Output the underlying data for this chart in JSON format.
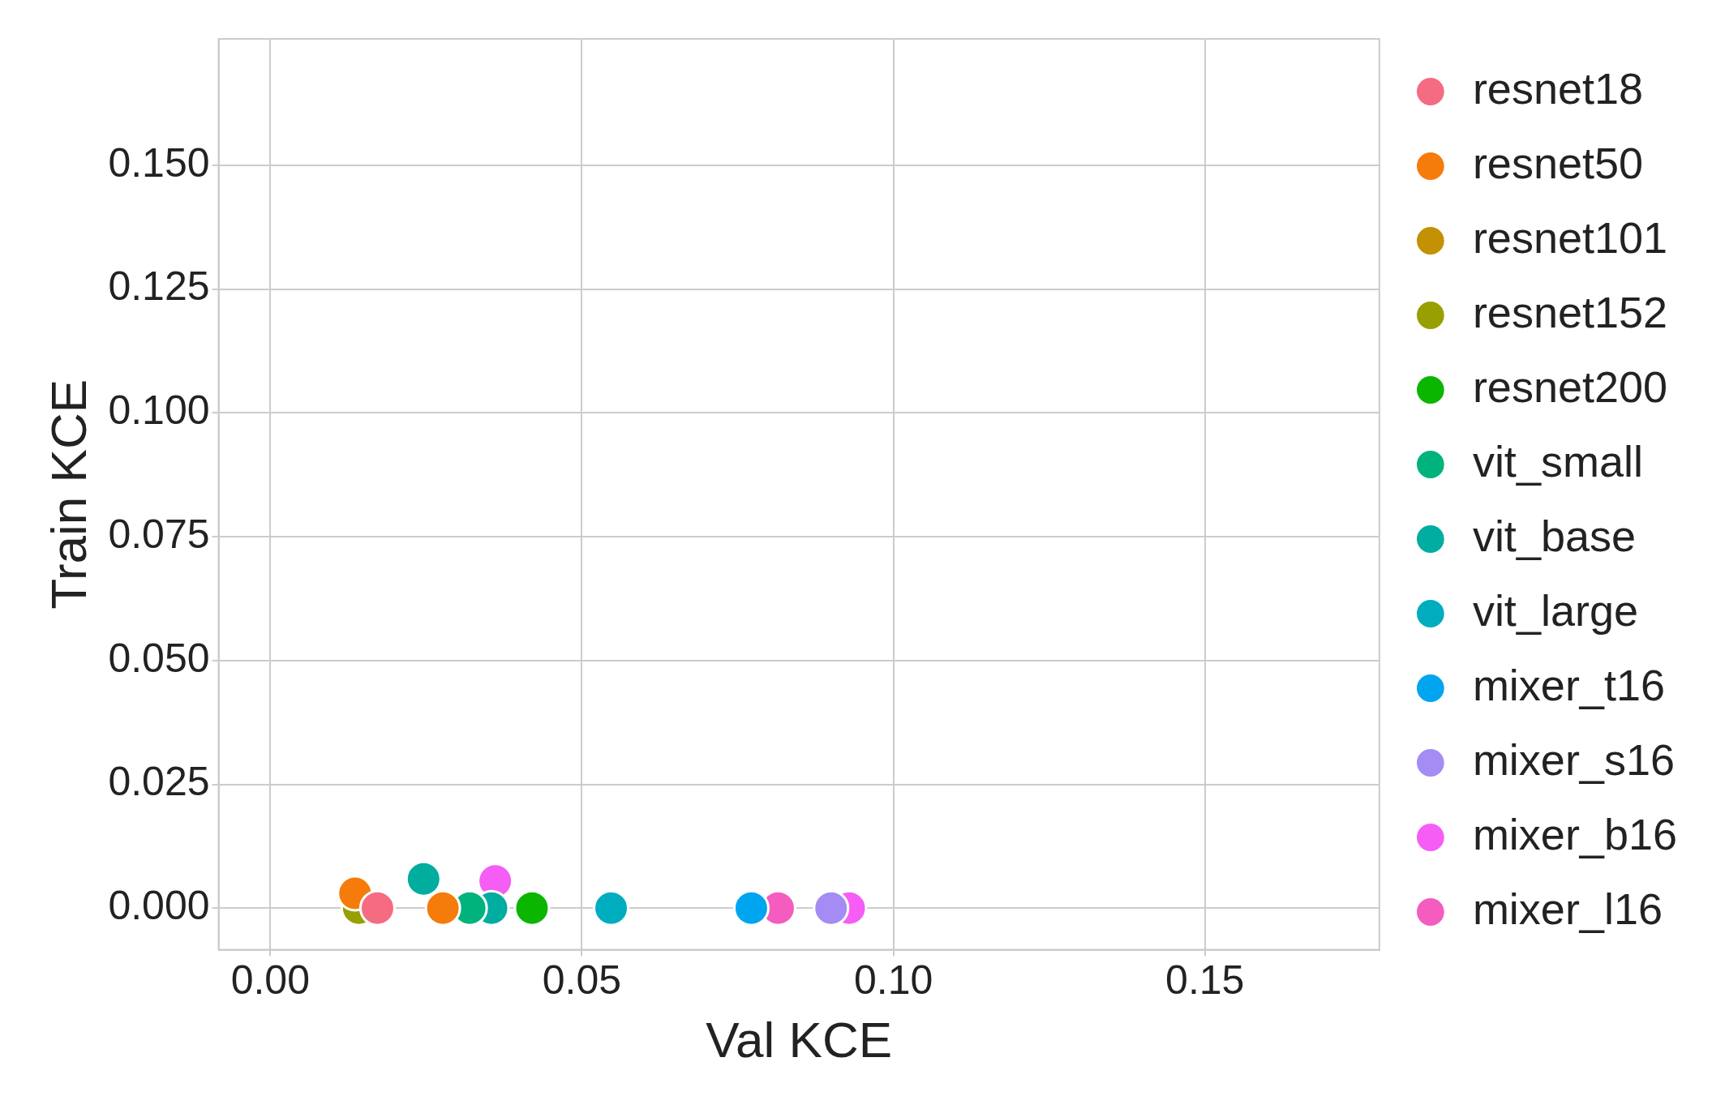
{
  "chart_data": {
    "type": "scatter",
    "xlabel": "Val KCE",
    "ylabel": "Train KCE",
    "xlim": [
      -0.0083,
      0.178
    ],
    "ylim": [
      -0.0084,
      0.1755
    ],
    "xticks": [
      {
        "value": 0,
        "label": "0.00"
      },
      {
        "value": 0.05,
        "label": "0.05"
      },
      {
        "value": 0.1,
        "label": "0.10"
      },
      {
        "value": 0.15,
        "label": "0.15"
      }
    ],
    "yticks": [
      {
        "value": 0,
        "label": "0.000"
      },
      {
        "value": 0.025,
        "label": "0.025"
      },
      {
        "value": 0.05,
        "label": "0.050"
      },
      {
        "value": 0.075,
        "label": "0.075"
      },
      {
        "value": 0.1,
        "label": "0.100"
      },
      {
        "value": 0.125,
        "label": "0.125"
      },
      {
        "value": 0.15,
        "label": "0.150"
      }
    ],
    "grid": true,
    "legend": "right",
    "marker": "circle",
    "series": [
      {
        "name": "resnet18",
        "color": "#f56b82",
        "x": [
          0.0172
        ],
        "values": [
          0
        ]
      },
      {
        "name": "resnet50",
        "color": "#f57c0b",
        "x": [
          0.0136,
          0.0277
        ],
        "values": [
          0.003,
          0
        ]
      },
      {
        "name": "resnet101",
        "color": "#c39104"
      },
      {
        "name": "resnet152",
        "color": "#97a000",
        "x": [
          0.0142
        ],
        "values": [
          0
        ]
      },
      {
        "name": "resnet200",
        "color": "#0ab600",
        "x": [
          0.042
        ],
        "values": [
          0
        ]
      },
      {
        "name": "vit_small",
        "color": "#00b27c",
        "x": [
          0.032
        ],
        "values": [
          0
        ]
      },
      {
        "name": "vit_base",
        "color": "#00ad9f",
        "x": [
          0.0246,
          0.0355
        ],
        "values": [
          0.0059,
          0
        ]
      },
      {
        "name": "vit_large",
        "color": "#00adbf",
        "x": [
          0.0547
        ],
        "values": [
          0
        ]
      },
      {
        "name": "mixer_t16",
        "color": "#00a5f0",
        "x": [
          0.0772
        ],
        "values": [
          0
        ]
      },
      {
        "name": "mixer_s16",
        "color": "#a48cf4",
        "x": [
          0.09
        ],
        "values": [
          0
        ]
      },
      {
        "name": "mixer_b16",
        "color": "#f65df5",
        "x": [
          0.0361,
          0.0929
        ],
        "values": [
          0.0055,
          0
        ]
      },
      {
        "name": "mixer_l16",
        "color": "#f45cbf",
        "x": [
          0.0815
        ],
        "values": [
          0
        ]
      }
    ]
  }
}
